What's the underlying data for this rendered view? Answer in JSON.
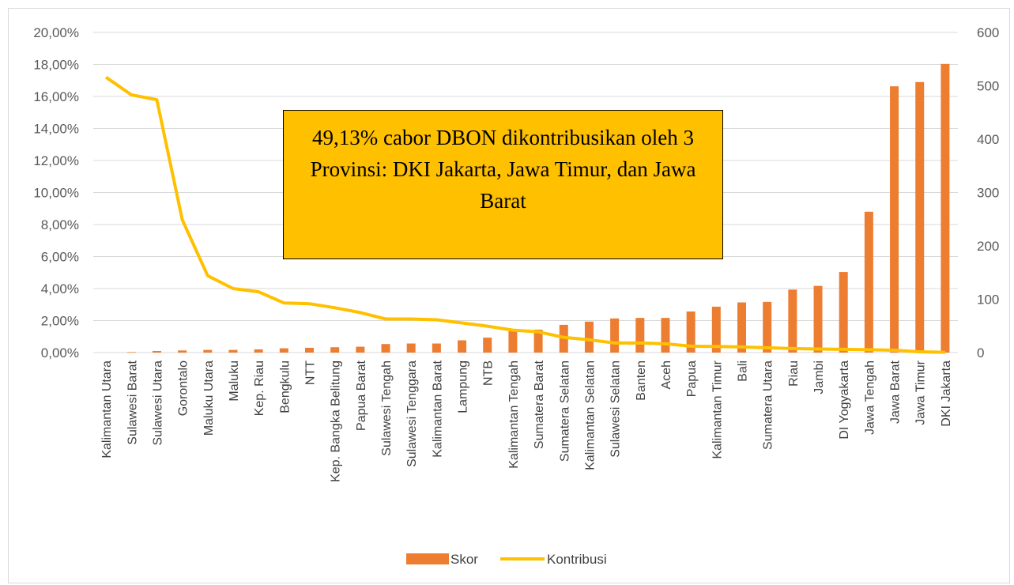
{
  "chart_data": {
    "type": "bar",
    "title": "",
    "xlabel": "",
    "ylabel": "",
    "categories": [
      "Kalimantan Utara",
      "Sulawesi Barat",
      "Sulawesi Utara",
      "Gorontalo",
      "Maluku Utara",
      "Maluku",
      "Kep. Riau",
      "Bengkulu",
      "NTT",
      "Kep. Bangka Belitung",
      "Papua Barat",
      "Sulawesi Tengah",
      "Sulawesi Tenggara",
      "Kalimantan Barat",
      "Lampung",
      "NTB",
      "Kalimantan Tengah",
      "Sumatera Barat",
      "Sumatera Selatan",
      "Kalimantan Selatan",
      "Sulawesi Selatan",
      "Banten",
      "Aceh",
      "Papua",
      "Kalimantan Timur",
      "Bali",
      "Sumatera Utara",
      "Riau",
      "Jambi",
      "DI Yogyakarta",
      "Jawa Tengah",
      "Jawa Barat",
      "Jawa Timur",
      "DKI Jakarta"
    ],
    "series": [
      {
        "name": "Skor",
        "type": "bar",
        "axis": "right",
        "color": "#ed7d31",
        "values": [
          0,
          1,
          3,
          4,
          5,
          5,
          6,
          8,
          9,
          10,
          11,
          16,
          17,
          17,
          23,
          28,
          40,
          43,
          52,
          58,
          64,
          65,
          65,
          77,
          86,
          94,
          95,
          118,
          125,
          151,
          264,
          499,
          507,
          541
        ]
      },
      {
        "name": "Kontribusi",
        "type": "line",
        "axis": "left",
        "color": "#ffc000",
        "values": [
          17.2,
          16.1,
          15.8,
          8.3,
          4.8,
          4.0,
          3.8,
          3.1,
          3.05,
          2.8,
          2.5,
          2.1,
          2.1,
          2.05,
          1.85,
          1.65,
          1.4,
          1.3,
          0.95,
          0.8,
          0.6,
          0.6,
          0.55,
          0.4,
          0.38,
          0.35,
          0.3,
          0.25,
          0.22,
          0.2,
          0.18,
          0.15,
          0.05,
          0.02
        ]
      }
    ],
    "y_left": {
      "min": 0,
      "max": 20,
      "step": 2,
      "tick_labels": [
        "0,00%",
        "2,00%",
        "4,00%",
        "6,00%",
        "8,00%",
        "10,00%",
        "12,00%",
        "14,00%",
        "16,00%",
        "18,00%",
        "20,00%"
      ]
    },
    "y_right": {
      "min": 0,
      "max": 600,
      "step": 100,
      "tick_labels": [
        "0",
        "100",
        "200",
        "300",
        "400",
        "500",
        "600"
      ]
    },
    "grid": true,
    "legend_position": "bottom",
    "annotation": "49,13% cabor DBON dikontribusikan oleh 3 Provinsi: DKI Jakarta, Jawa Timur, dan Jawa Barat"
  }
}
